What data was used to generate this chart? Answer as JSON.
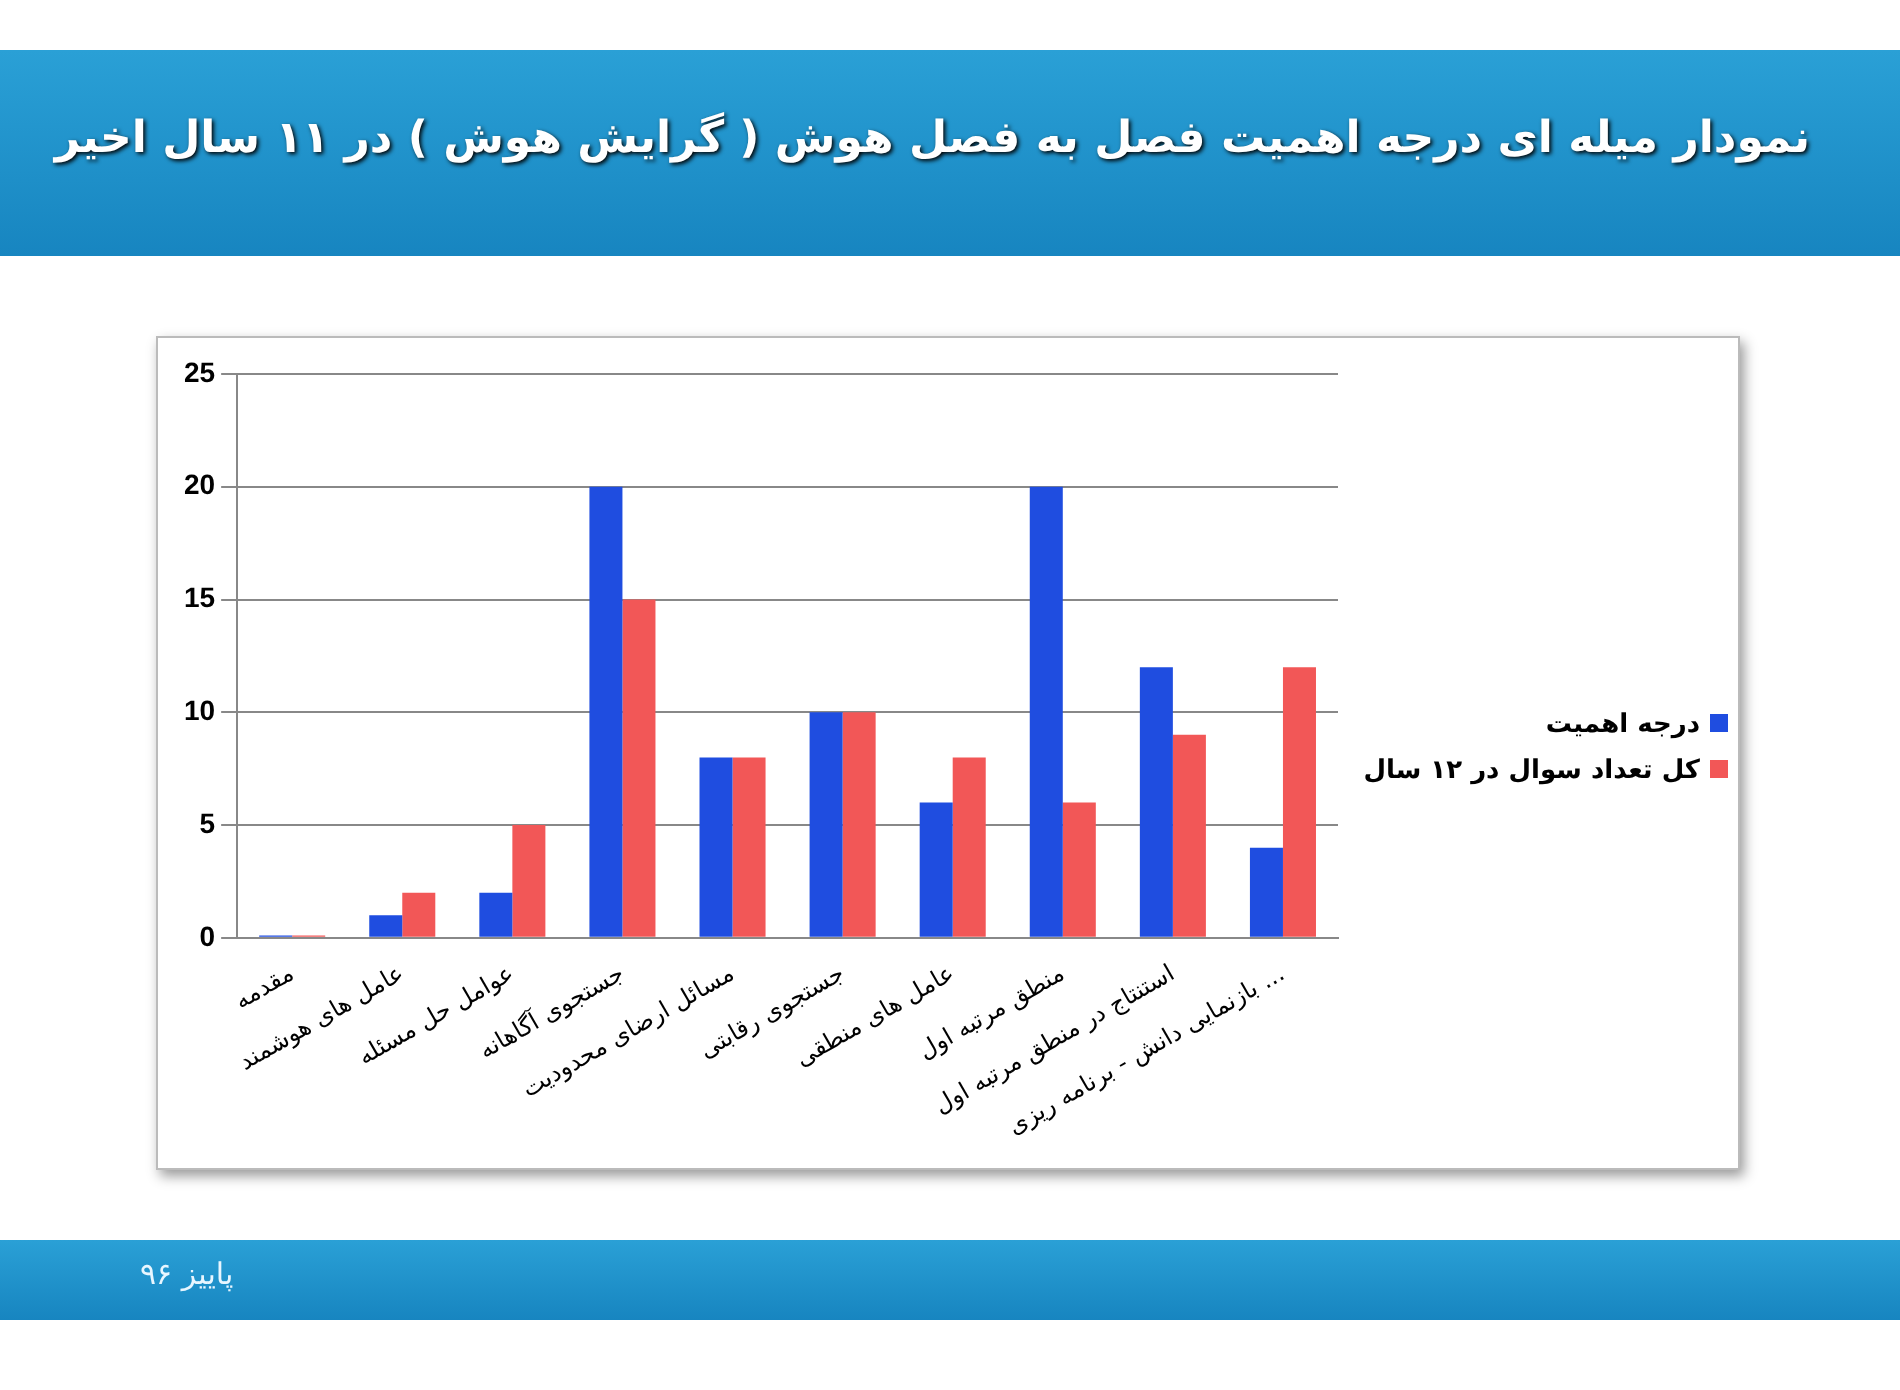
{
  "chart_data": {
    "type": "bar",
    "title": "نمودار میله ای  درجه اهمیت فصل به فصل هوش ( گرایش هوش ) در ۱۱ سال اخیر",
    "categories": [
      "مقدمه",
      "عامل های هوشمند",
      "عوامل حل مسئله",
      "جستجوی آگاهانه",
      "مسائل ارضای محدودیت",
      "جستجوی رقابتی",
      "عامل های منطقی",
      "منطق مرتبه اول",
      "استنتاج در منطق مرتبه اول",
      "بازنمایی دانش - برنامه ریزی ..."
    ],
    "series": [
      {
        "name": "درجه اهمیت",
        "color": "#1f4de0",
        "values": [
          0.1,
          1,
          2,
          20,
          8,
          10,
          6,
          20,
          12,
          4
        ]
      },
      {
        "name": "کل تعداد سوال در ۱۲ سال",
        "color": "#f25757",
        "values": [
          0.1,
          2,
          5,
          15,
          8,
          10,
          8,
          6,
          9,
          12
        ]
      }
    ],
    "ylim": [
      0,
      25
    ],
    "yticks": [
      0,
      5,
      10,
      15,
      20,
      25
    ],
    "grid": "y",
    "legend": "right",
    "annotations": [
      "پاییز ۹۶"
    ]
  }
}
